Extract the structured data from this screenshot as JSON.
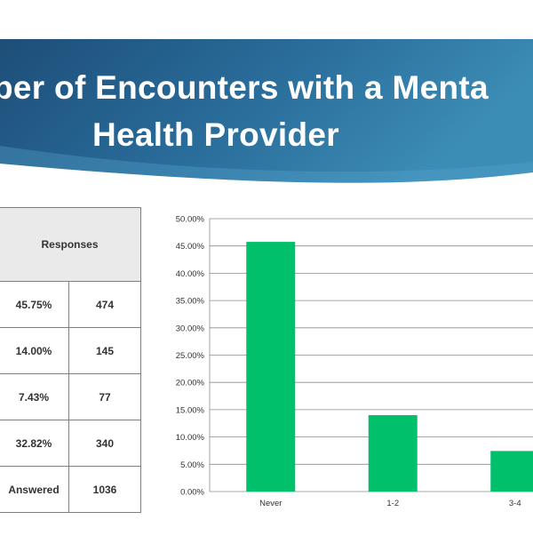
{
  "title": {
    "line1": "ber of Encounters with a Menta",
    "line2": "Health Provider"
  },
  "colors": {
    "banner_dark": "#1d4e78",
    "banner_mid": "#2a6d9b",
    "banner_light": "#3c8db6",
    "bar": "#00c06b"
  },
  "table": {
    "header": "Responses",
    "rows": [
      {
        "percent": "45.75%",
        "count": "474"
      },
      {
        "percent": "14.00%",
        "count": "145"
      },
      {
        "percent": "7.43%",
        "count": "77"
      },
      {
        "percent": "32.82%",
        "count": "340"
      },
      {
        "percent": "Answered",
        "count": "1036"
      }
    ]
  },
  "chart_data": {
    "type": "bar",
    "categories": [
      "Never",
      "1-2",
      "3-4"
    ],
    "values": [
      45.75,
      14.0,
      7.43
    ],
    "ylim": [
      0,
      50
    ],
    "yticks": [
      "0.00%",
      "5.00%",
      "10.00%",
      "15.00%",
      "20.00%",
      "25.00%",
      "30.00%",
      "35.00%",
      "40.00%",
      "45.00%",
      "50.00%"
    ],
    "grid": true,
    "title": "",
    "xlabel": "",
    "ylabel": ""
  }
}
